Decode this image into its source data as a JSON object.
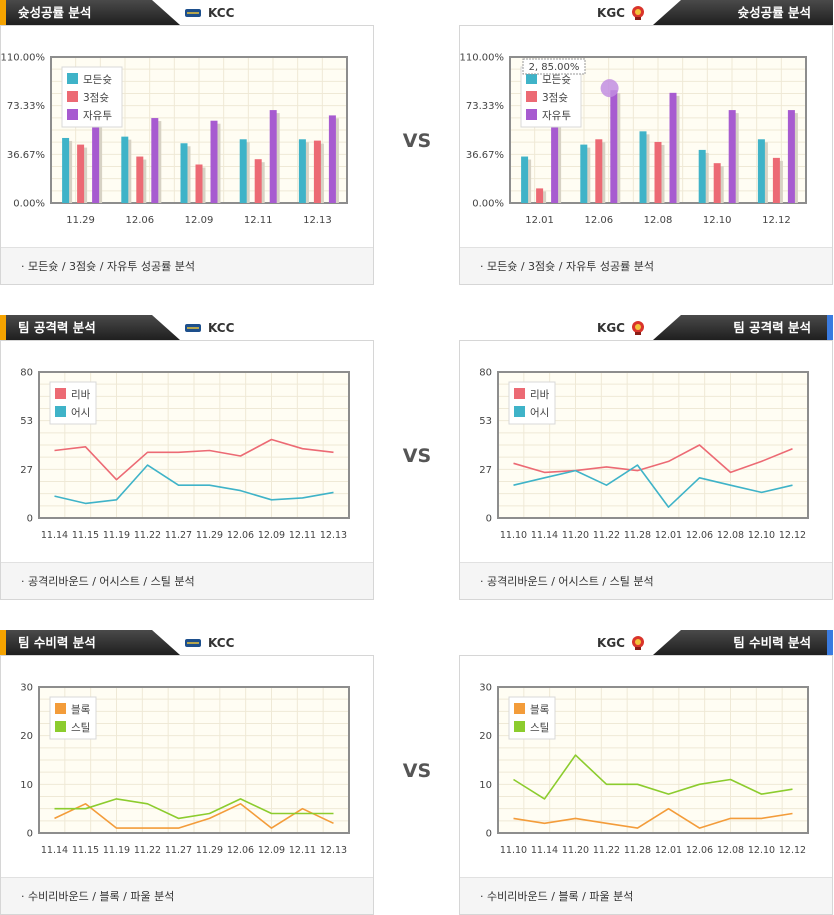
{
  "vs_label": "VS",
  "colors": {
    "left_accent": "#f5a300",
    "right_accent": "#3a7be0"
  },
  "sections": [
    {
      "left": {
        "title": "슛성공률 분석",
        "team": "KCC",
        "footer": "·  모든슛 / 3점슛 / 자유투 성공률 분석",
        "chart_data": {
          "type": "bar",
          "categories": [
            "11.29",
            "12.06",
            "12.09",
            "12.11",
            "12.13"
          ],
          "yticks": [
            "0.00%",
            "36.67%",
            "73.33%",
            "110.00%"
          ],
          "ylim": [
            0,
            110
          ],
          "legend": "top-left",
          "series": [
            {
              "name": "모든슛",
              "color": "#3fb3c8",
              "values": [
                49,
                50,
                45,
                48,
                48
              ]
            },
            {
              "name": "3점슛",
              "color": "#ec6a74",
              "values": [
                44,
                35,
                29,
                33,
                47
              ]
            },
            {
              "name": "자유투",
              "color": "#a75bd0",
              "values": [
                62,
                64,
                62,
                70,
                66
              ]
            }
          ],
          "tooltip": null
        }
      },
      "right": {
        "title": "슛성공률 분석",
        "team": "KGC",
        "footer": "·  모든슛 / 3점슛 / 자유투 성공률 분석",
        "chart_data": {
          "type": "bar",
          "categories": [
            "12.01",
            "12.06",
            "12.08",
            "12.10",
            "12.12"
          ],
          "yticks": [
            "0.00%",
            "36.67%",
            "73.33%",
            "110.00%"
          ],
          "ylim": [
            0,
            110
          ],
          "legend": "top-left",
          "series": [
            {
              "name": "모든슛",
              "color": "#3fb3c8",
              "values": [
                35,
                44,
                54,
                40,
                48
              ]
            },
            {
              "name": "3점슛",
              "color": "#ec6a74",
              "values": [
                11,
                48,
                46,
                30,
                34
              ]
            },
            {
              "name": "자유투",
              "color": "#a75bd0",
              "values": [
                85,
                85,
                83,
                70,
                70
              ]
            }
          ],
          "tooltip": {
            "text": "2, 85.00%",
            "series": 2,
            "index": 0
          }
        }
      }
    },
    {
      "left": {
        "title": "팀 공격력 분석",
        "team": "KCC",
        "footer": "·  공격리바운드 / 어시스트 / 스틸 분석",
        "chart_data": {
          "type": "line",
          "categories": [
            "11.14",
            "11.15",
            "11.19",
            "11.22",
            "11.27",
            "11.29",
            "12.06",
            "12.09",
            "12.11",
            "12.13"
          ],
          "yticks": [
            "0",
            "27",
            "53",
            "80"
          ],
          "ylim": [
            0,
            80
          ],
          "legend": "top-left",
          "series": [
            {
              "name": "리바",
              "color": "#ec6a74",
              "values": [
                37,
                39,
                21,
                36,
                36,
                37,
                34,
                43,
                38,
                36
              ]
            },
            {
              "name": "어시",
              "color": "#3fb3c8",
              "values": [
                12,
                8,
                10,
                29,
                18,
                18,
                15,
                10,
                11,
                14
              ]
            }
          ]
        }
      },
      "right": {
        "title": "팀 공격력 분석",
        "team": "KGC",
        "footer": "·  공격리바운드 / 어시스트 / 스틸 분석",
        "chart_data": {
          "type": "line",
          "categories": [
            "11.10",
            "11.14",
            "11.20",
            "11.22",
            "11.28",
            "12.01",
            "12.06",
            "12.08",
            "12.10",
            "12.12"
          ],
          "yticks": [
            "0",
            "27",
            "53",
            "80"
          ],
          "ylim": [
            0,
            80
          ],
          "legend": "top-left",
          "series": [
            {
              "name": "리바",
              "color": "#ec6a74",
              "values": [
                30,
                25,
                26,
                28,
                26,
                31,
                40,
                25,
                31,
                38
              ]
            },
            {
              "name": "어시",
              "color": "#3fb3c8",
              "values": [
                18,
                22,
                26,
                18,
                29,
                6,
                22,
                18,
                14,
                18
              ]
            }
          ]
        }
      }
    },
    {
      "left": {
        "title": "팀 수비력 분석",
        "team": "KCC",
        "footer": "·  수비리바운드 / 블록 / 파울 분석",
        "chart_data": {
          "type": "line",
          "categories": [
            "11.14",
            "11.15",
            "11.19",
            "11.22",
            "11.27",
            "11.29",
            "12.06",
            "12.09",
            "12.11",
            "12.13"
          ],
          "yticks": [
            "0",
            "10",
            "20",
            "30"
          ],
          "ylim": [
            0,
            30
          ],
          "legend": "top-left",
          "series": [
            {
              "name": "블록",
              "color": "#f39c3a",
              "values": [
                3,
                6,
                1,
                1,
                1,
                3,
                6,
                1,
                5,
                2
              ]
            },
            {
              "name": "스틸",
              "color": "#8ccc2e",
              "values": [
                5,
                5,
                7,
                6,
                3,
                4,
                7,
                4,
                4,
                4
              ]
            }
          ]
        }
      },
      "right": {
        "title": "팀 수비력 분석",
        "team": "KGC",
        "footer": "·  수비리바운드 / 블록 / 파울 분석",
        "chart_data": {
          "type": "line",
          "categories": [
            "11.10",
            "11.14",
            "11.20",
            "11.22",
            "11.28",
            "12.01",
            "12.06",
            "12.08",
            "12.10",
            "12.12"
          ],
          "yticks": [
            "0",
            "10",
            "20",
            "30"
          ],
          "ylim": [
            0,
            30
          ],
          "legend": "top-left",
          "series": [
            {
              "name": "블록",
              "color": "#f39c3a",
              "values": [
                3,
                2,
                3,
                2,
                1,
                5,
                1,
                3,
                3,
                4
              ]
            },
            {
              "name": "스틸",
              "color": "#8ccc2e",
              "values": [
                11,
                7,
                16,
                10,
                10,
                8,
                10,
                11,
                8,
                9
              ]
            }
          ]
        }
      }
    }
  ]
}
